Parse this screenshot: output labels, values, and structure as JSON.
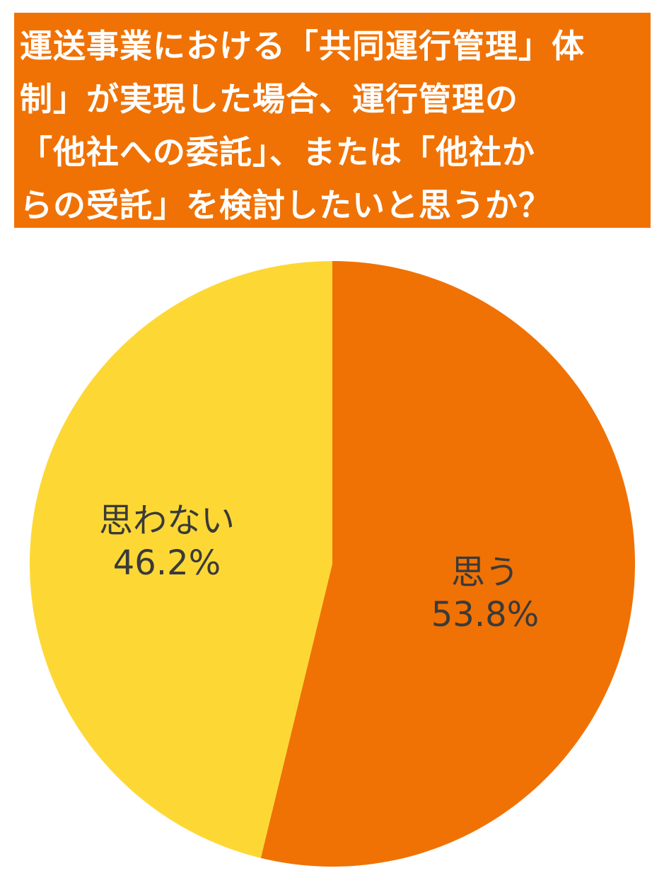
{
  "colors": {
    "title_background": "#f07204",
    "title_text": "#ffffff",
    "label_text": "#3a3a3a"
  },
  "chart_data": {
    "type": "pie",
    "title_lines": [
      "運送事業における「共同運行管理」体",
      "制」が実現した場合、運行管理の",
      "「他社への委託」、または「他社か",
      "らの受託」を検討したいと思うか？"
    ],
    "start_angle_deg": 0,
    "direction": "clockwise",
    "slices": [
      {
        "label": "思う",
        "value": 53.8,
        "value_label": "53.8%",
        "color": "#f07204"
      },
      {
        "label": "思わない",
        "value": 46.2,
        "value_label": "46.2%",
        "color": "#fdd835"
      }
    ]
  }
}
